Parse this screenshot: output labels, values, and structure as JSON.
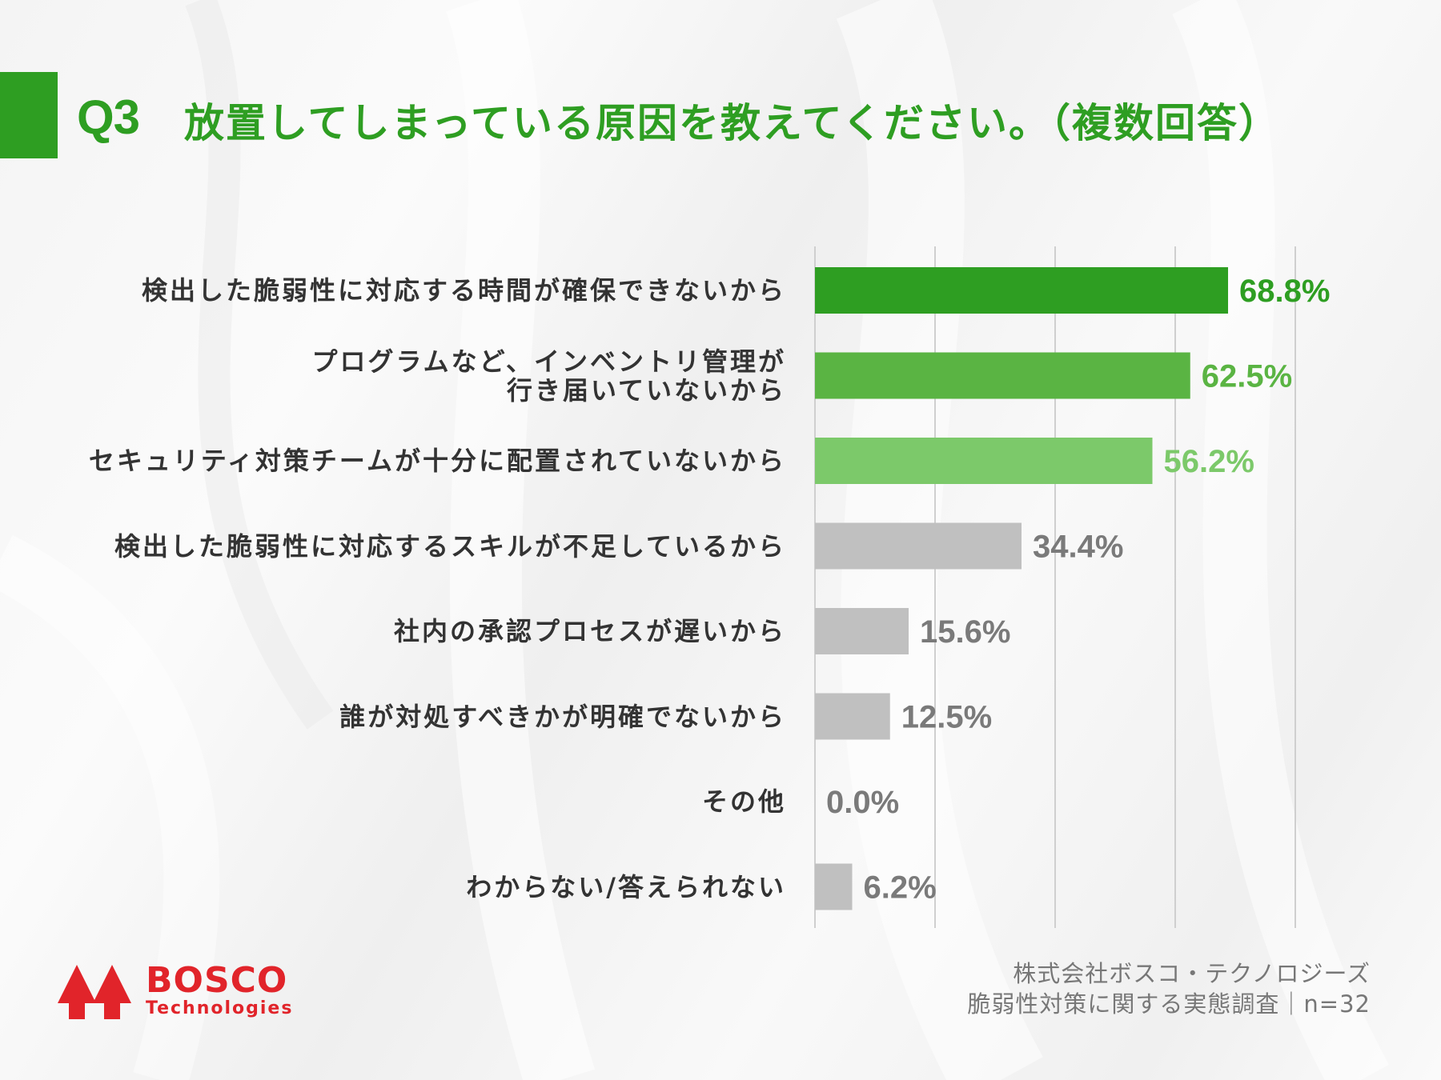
{
  "header": {
    "question_number": "Q3",
    "title": "放置してしまっている原因を教えてください。（複数回答）"
  },
  "colors": {
    "accent": "#2e9e22",
    "bar_1": "#2e9e22",
    "bar_2": "#5ab443",
    "bar_3": "#7cc96a",
    "bar_gray": "#c0c0c0",
    "label_gray": "#7a7a7a",
    "logo_red": "#e1242a"
  },
  "chart_data": {
    "type": "bar",
    "orientation": "horizontal",
    "categories": [
      "検出した脆弱性に対応する時間が確保できないから",
      "プログラムなど、インベントリ管理が\n行き届いていないから",
      "セキュリティ対策チームが十分に配置されていないから",
      "検出した脆弱性に対応するスキルが不足しているから",
      "社内の承認プロセスが遅いから",
      "誰が対処すべきかが明確でないから",
      "その他",
      "わからない/答えられない"
    ],
    "values": [
      68.8,
      62.5,
      56.2,
      34.4,
      15.6,
      12.5,
      0.0,
      6.2
    ],
    "data_labels": [
      "68.8%",
      "62.5%",
      "56.2%",
      "34.4%",
      "15.6%",
      "12.5%",
      "0.0%",
      "6.2%"
    ],
    "xlim": [
      0,
      80
    ],
    "grid": true,
    "grid_step": 20,
    "title": "",
    "xlabel": "",
    "ylabel": ""
  },
  "logo": {
    "name": "BOSCO",
    "sub": "Technologies"
  },
  "footer": {
    "line1": "株式会社ボスコ・テクノロジーズ",
    "line2": "脆弱性対策に関する実態調査｜n=32"
  }
}
